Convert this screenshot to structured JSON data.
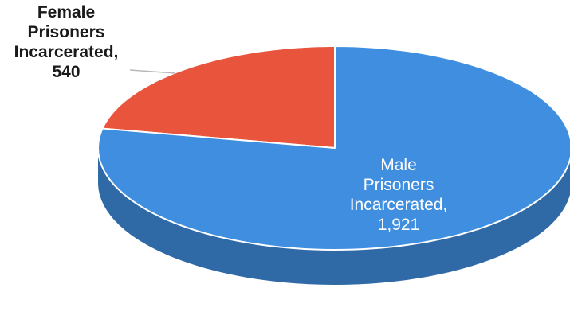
{
  "chart_data": {
    "type": "pie",
    "style": "3d",
    "slices": [
      {
        "label_lines": [
          "Female",
          "Prisoners",
          "Incarcerated,",
          "540"
        ],
        "value": 540,
        "color": "#e8553c",
        "side_color": "#b63a26",
        "label_position": "outside-top-left"
      },
      {
        "label_lines": [
          "Male",
          "Prisoners",
          "Incarcerated,",
          "1,921"
        ],
        "value": 1921,
        "color": "#3f8ee0",
        "side_color": "#2f6aa7",
        "label_position": "inside"
      }
    ],
    "title": "",
    "legend": "none"
  }
}
